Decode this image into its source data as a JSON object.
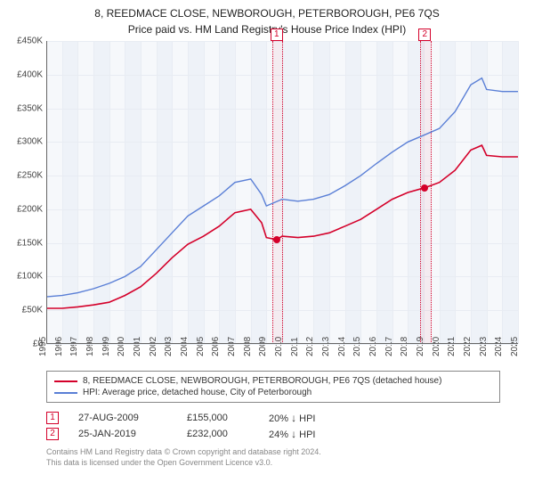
{
  "title": "8, REEDMACE CLOSE, NEWBOROUGH, PETERBOROUGH, PE6 7QS",
  "subtitle": "Price paid vs. HM Land Registry's House Price Index (HPI)",
  "chart": {
    "type": "line",
    "x_range": [
      1995,
      2025
    ],
    "y_range": [
      0,
      450000
    ],
    "y_ticks": [
      0,
      50000,
      100000,
      150000,
      200000,
      250000,
      300000,
      350000,
      400000,
      450000
    ],
    "y_tick_labels": [
      "£0",
      "£50K",
      "£100K",
      "£150K",
      "£200K",
      "£250K",
      "£300K",
      "£350K",
      "£400K",
      "£450K"
    ],
    "x_ticks": [
      1995,
      1996,
      1997,
      1998,
      1999,
      2000,
      2001,
      2002,
      2003,
      2004,
      2005,
      2006,
      2007,
      2008,
      2009,
      2010,
      2011,
      2012,
      2013,
      2014,
      2015,
      2016,
      2017,
      2018,
      2019,
      2020,
      2021,
      2022,
      2023,
      2024,
      2025
    ],
    "grid_color_major": "#ffffff",
    "grid_color_minor": "#e8ecf3",
    "alt_band_color": "#eef2f8",
    "background": "#f6f8fb",
    "axis_color": "#666666",
    "series": [
      {
        "name": "property",
        "color": "#d4002a",
        "width": 1.6,
        "points": [
          [
            1995,
            53000
          ],
          [
            1996,
            53000
          ],
          [
            1997,
            55000
          ],
          [
            1998,
            58000
          ],
          [
            1999,
            62000
          ],
          [
            2000,
            72000
          ],
          [
            2001,
            85000
          ],
          [
            2002,
            105000
          ],
          [
            2003,
            128000
          ],
          [
            2004,
            148000
          ],
          [
            2005,
            160000
          ],
          [
            2006,
            175000
          ],
          [
            2007,
            195000
          ],
          [
            2008,
            200000
          ],
          [
            2008.7,
            180000
          ],
          [
            2009,
            158000
          ],
          [
            2009.65,
            155000
          ],
          [
            2010,
            160000
          ],
          [
            2011,
            158000
          ],
          [
            2012,
            160000
          ],
          [
            2013,
            165000
          ],
          [
            2014,
            175000
          ],
          [
            2015,
            185000
          ],
          [
            2016,
            200000
          ],
          [
            2017,
            215000
          ],
          [
            2018,
            225000
          ],
          [
            2019.07,
            232000
          ],
          [
            2020,
            240000
          ],
          [
            2021,
            258000
          ],
          [
            2022,
            288000
          ],
          [
            2022.7,
            295000
          ],
          [
            2023,
            280000
          ],
          [
            2024,
            278000
          ],
          [
            2025,
            278000
          ]
        ]
      },
      {
        "name": "hpi",
        "color": "#5a7fd6",
        "width": 1.4,
        "points": [
          [
            1995,
            70000
          ],
          [
            1996,
            72000
          ],
          [
            1997,
            76000
          ],
          [
            1998,
            82000
          ],
          [
            1999,
            90000
          ],
          [
            2000,
            100000
          ],
          [
            2001,
            115000
          ],
          [
            2002,
            140000
          ],
          [
            2003,
            165000
          ],
          [
            2004,
            190000
          ],
          [
            2005,
            205000
          ],
          [
            2006,
            220000
          ],
          [
            2007,
            240000
          ],
          [
            2008,
            245000
          ],
          [
            2008.7,
            222000
          ],
          [
            2009,
            205000
          ],
          [
            2010,
            215000
          ],
          [
            2011,
            212000
          ],
          [
            2012,
            215000
          ],
          [
            2013,
            222000
          ],
          [
            2014,
            235000
          ],
          [
            2015,
            250000
          ],
          [
            2016,
            268000
          ],
          [
            2017,
            285000
          ],
          [
            2018,
            300000
          ],
          [
            2019,
            310000
          ],
          [
            2020,
            320000
          ],
          [
            2021,
            345000
          ],
          [
            2022,
            385000
          ],
          [
            2022.7,
            395000
          ],
          [
            2023,
            378000
          ],
          [
            2024,
            375000
          ],
          [
            2025,
            375000
          ]
        ]
      }
    ],
    "markers": [
      {
        "n": 1,
        "x": 2009.65,
        "y": 155000,
        "color": "#d4002a"
      },
      {
        "n": 2,
        "x": 2019.07,
        "y": 232000,
        "color": "#d4002a"
      }
    ],
    "marker_band_width_years": 0.6
  },
  "legend": [
    {
      "color": "#d4002a",
      "label": "8, REEDMACE CLOSE, NEWBOROUGH, PETERBOROUGH, PE6 7QS (detached house)"
    },
    {
      "color": "#5a7fd6",
      "label": "HPI: Average price, detached house, City of Peterborough"
    }
  ],
  "events": [
    {
      "n": "1",
      "color": "#d4002a",
      "date": "27-AUG-2009",
      "price": "£155,000",
      "pct": "20%",
      "arrow": "↓",
      "tag": "HPI"
    },
    {
      "n": "2",
      "color": "#d4002a",
      "date": "25-JAN-2019",
      "price": "£232,000",
      "pct": "24%",
      "arrow": "↓",
      "tag": "HPI"
    }
  ],
  "footer_line1": "Contains HM Land Registry data © Crown copyright and database right 2024.",
  "footer_line2": "This data is licensed under the Open Government Licence v3.0."
}
